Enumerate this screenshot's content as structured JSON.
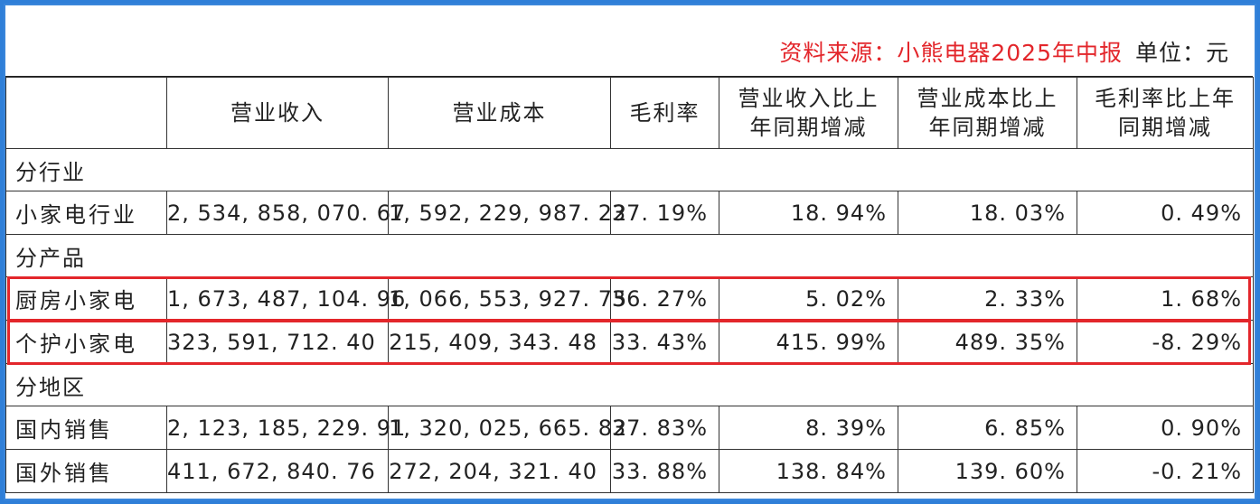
{
  "source": {
    "label": "资料来源：小熊电器2025年中报",
    "unit": "单位：元",
    "accent_color": "#e3262b"
  },
  "table": {
    "headers": [
      "",
      "营业收入",
      "营业成本",
      "毛利率",
      "营业收入比上年同期增减",
      "营业成本比上年同期增减",
      "毛利率比上年同期增减"
    ],
    "header_lines": [
      [
        ""
      ],
      [
        "营业收入"
      ],
      [
        "营业成本"
      ],
      [
        "毛利率"
      ],
      [
        "营业收入比上",
        "年同期增减"
      ],
      [
        "营业成本比上",
        "年同期增减"
      ],
      [
        "毛利率比上年",
        "同期增减"
      ]
    ],
    "sections": [
      {
        "title": "分行业",
        "rows": [
          {
            "name": "小家电行业",
            "revenue": "2, 534, 858, 070. 67",
            "cost": "1, 592, 229, 987. 22",
            "margin": "37. 19%",
            "rev_change": "18. 94%",
            "cost_change": "18. 03%",
            "margin_change": "0. 49%",
            "highlighted": false
          }
        ]
      },
      {
        "title": "分产品",
        "rows": [
          {
            "name": "厨房小家电",
            "revenue": "1, 673, 487, 104. 96",
            "cost": "1, 066, 553, 927. 75",
            "margin": "36. 27%",
            "rev_change": "5. 02%",
            "cost_change": "2. 33%",
            "margin_change": "1. 68%",
            "highlighted": true
          },
          {
            "name": "个护小家电",
            "revenue": "323, 591, 712. 40",
            "cost": "215, 409, 343. 48",
            "margin": "33. 43%",
            "rev_change": "415. 99%",
            "cost_change": "489. 35%",
            "margin_change": "-8. 29%",
            "highlighted": true
          }
        ]
      },
      {
        "title": "分地区",
        "rows": [
          {
            "name": "国内销售",
            "revenue": "2, 123, 185, 229. 91",
            "cost": "1, 320, 025, 665. 82",
            "margin": "37. 83%",
            "rev_change": "8. 39%",
            "cost_change": "6. 85%",
            "margin_change": "0. 90%",
            "highlighted": false
          },
          {
            "name": "国外销售",
            "revenue": "411, 672, 840. 76",
            "cost": "272, 204, 321. 40",
            "margin": "33. 88%",
            "rev_change": "138. 84%",
            "cost_change": "139. 60%",
            "margin_change": "-0. 21%",
            "highlighted": false
          }
        ]
      }
    ]
  }
}
